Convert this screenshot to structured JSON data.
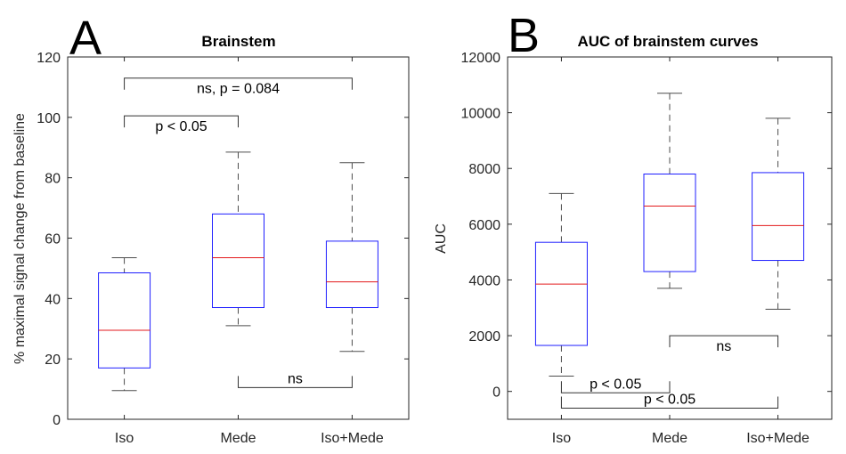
{
  "chart_data": [
    {
      "type": "box",
      "panel_label": "A",
      "title": "Brainstem",
      "xlabel": "",
      "ylabel": "% maximal signal change from baseline",
      "ylim": [
        0,
        120
      ],
      "yticks": [
        0,
        20,
        40,
        60,
        80,
        100,
        120
      ],
      "grid": false,
      "categories": [
        "Iso",
        "Mede",
        "Iso+Mede"
      ],
      "boxes": [
        {
          "whisker_low": 9.5,
          "q1": 17,
          "median": 29.5,
          "q3": 48.5,
          "whisker_high": 53.5
        },
        {
          "whisker_low": 31,
          "q1": 37,
          "median": 53.5,
          "q3": 68,
          "whisker_high": 88.5
        },
        {
          "whisker_low": 22.5,
          "q1": 37,
          "median": 45.5,
          "q3": 59,
          "whisker_high": 85
        }
      ],
      "annotations": [
        {
          "text": "ns, p = 0.084",
          "from": 0,
          "to": 2,
          "y": 113,
          "direction": "down"
        },
        {
          "text": "p < 0.05",
          "from": 0,
          "to": 1,
          "y": 100.5,
          "direction": "down"
        },
        {
          "text": "ns",
          "from": 1,
          "to": 2,
          "y": 10.5,
          "direction": "up"
        }
      ]
    },
    {
      "type": "box",
      "panel_label": "B",
      "title": "AUC of brainstem curves",
      "xlabel": "",
      "ylabel": "AUC",
      "ylim": [
        -1000,
        12000
      ],
      "yticks": [
        0,
        2000,
        4000,
        6000,
        8000,
        10000,
        12000
      ],
      "grid": false,
      "categories": [
        "Iso",
        "Mede",
        "Iso+Mede"
      ],
      "boxes": [
        {
          "whisker_low": 550,
          "q1": 1650,
          "median": 3850,
          "q3": 5350,
          "whisker_high": 7100
        },
        {
          "whisker_low": 3700,
          "q1": 4300,
          "median": 6650,
          "q3": 7800,
          "whisker_high": 10700
        },
        {
          "whisker_low": 2950,
          "q1": 4700,
          "median": 5950,
          "q3": 7850,
          "whisker_high": 9800
        }
      ],
      "annotations": [
        {
          "text": "ns",
          "from": 1,
          "to": 2,
          "y": 2000,
          "direction": "down"
        },
        {
          "text": "p < 0.05",
          "from": 0,
          "to": 1,
          "y": -50,
          "direction": "up"
        },
        {
          "text": "p < 0.05",
          "from": 0,
          "to": 2,
          "y": -600,
          "direction": "up"
        }
      ]
    }
  ],
  "colors": {
    "box": "#1f1fff",
    "median": "#e31a1c",
    "whisker": "#4d4d4d",
    "axis": "#262626",
    "bracket": "#333333"
  }
}
